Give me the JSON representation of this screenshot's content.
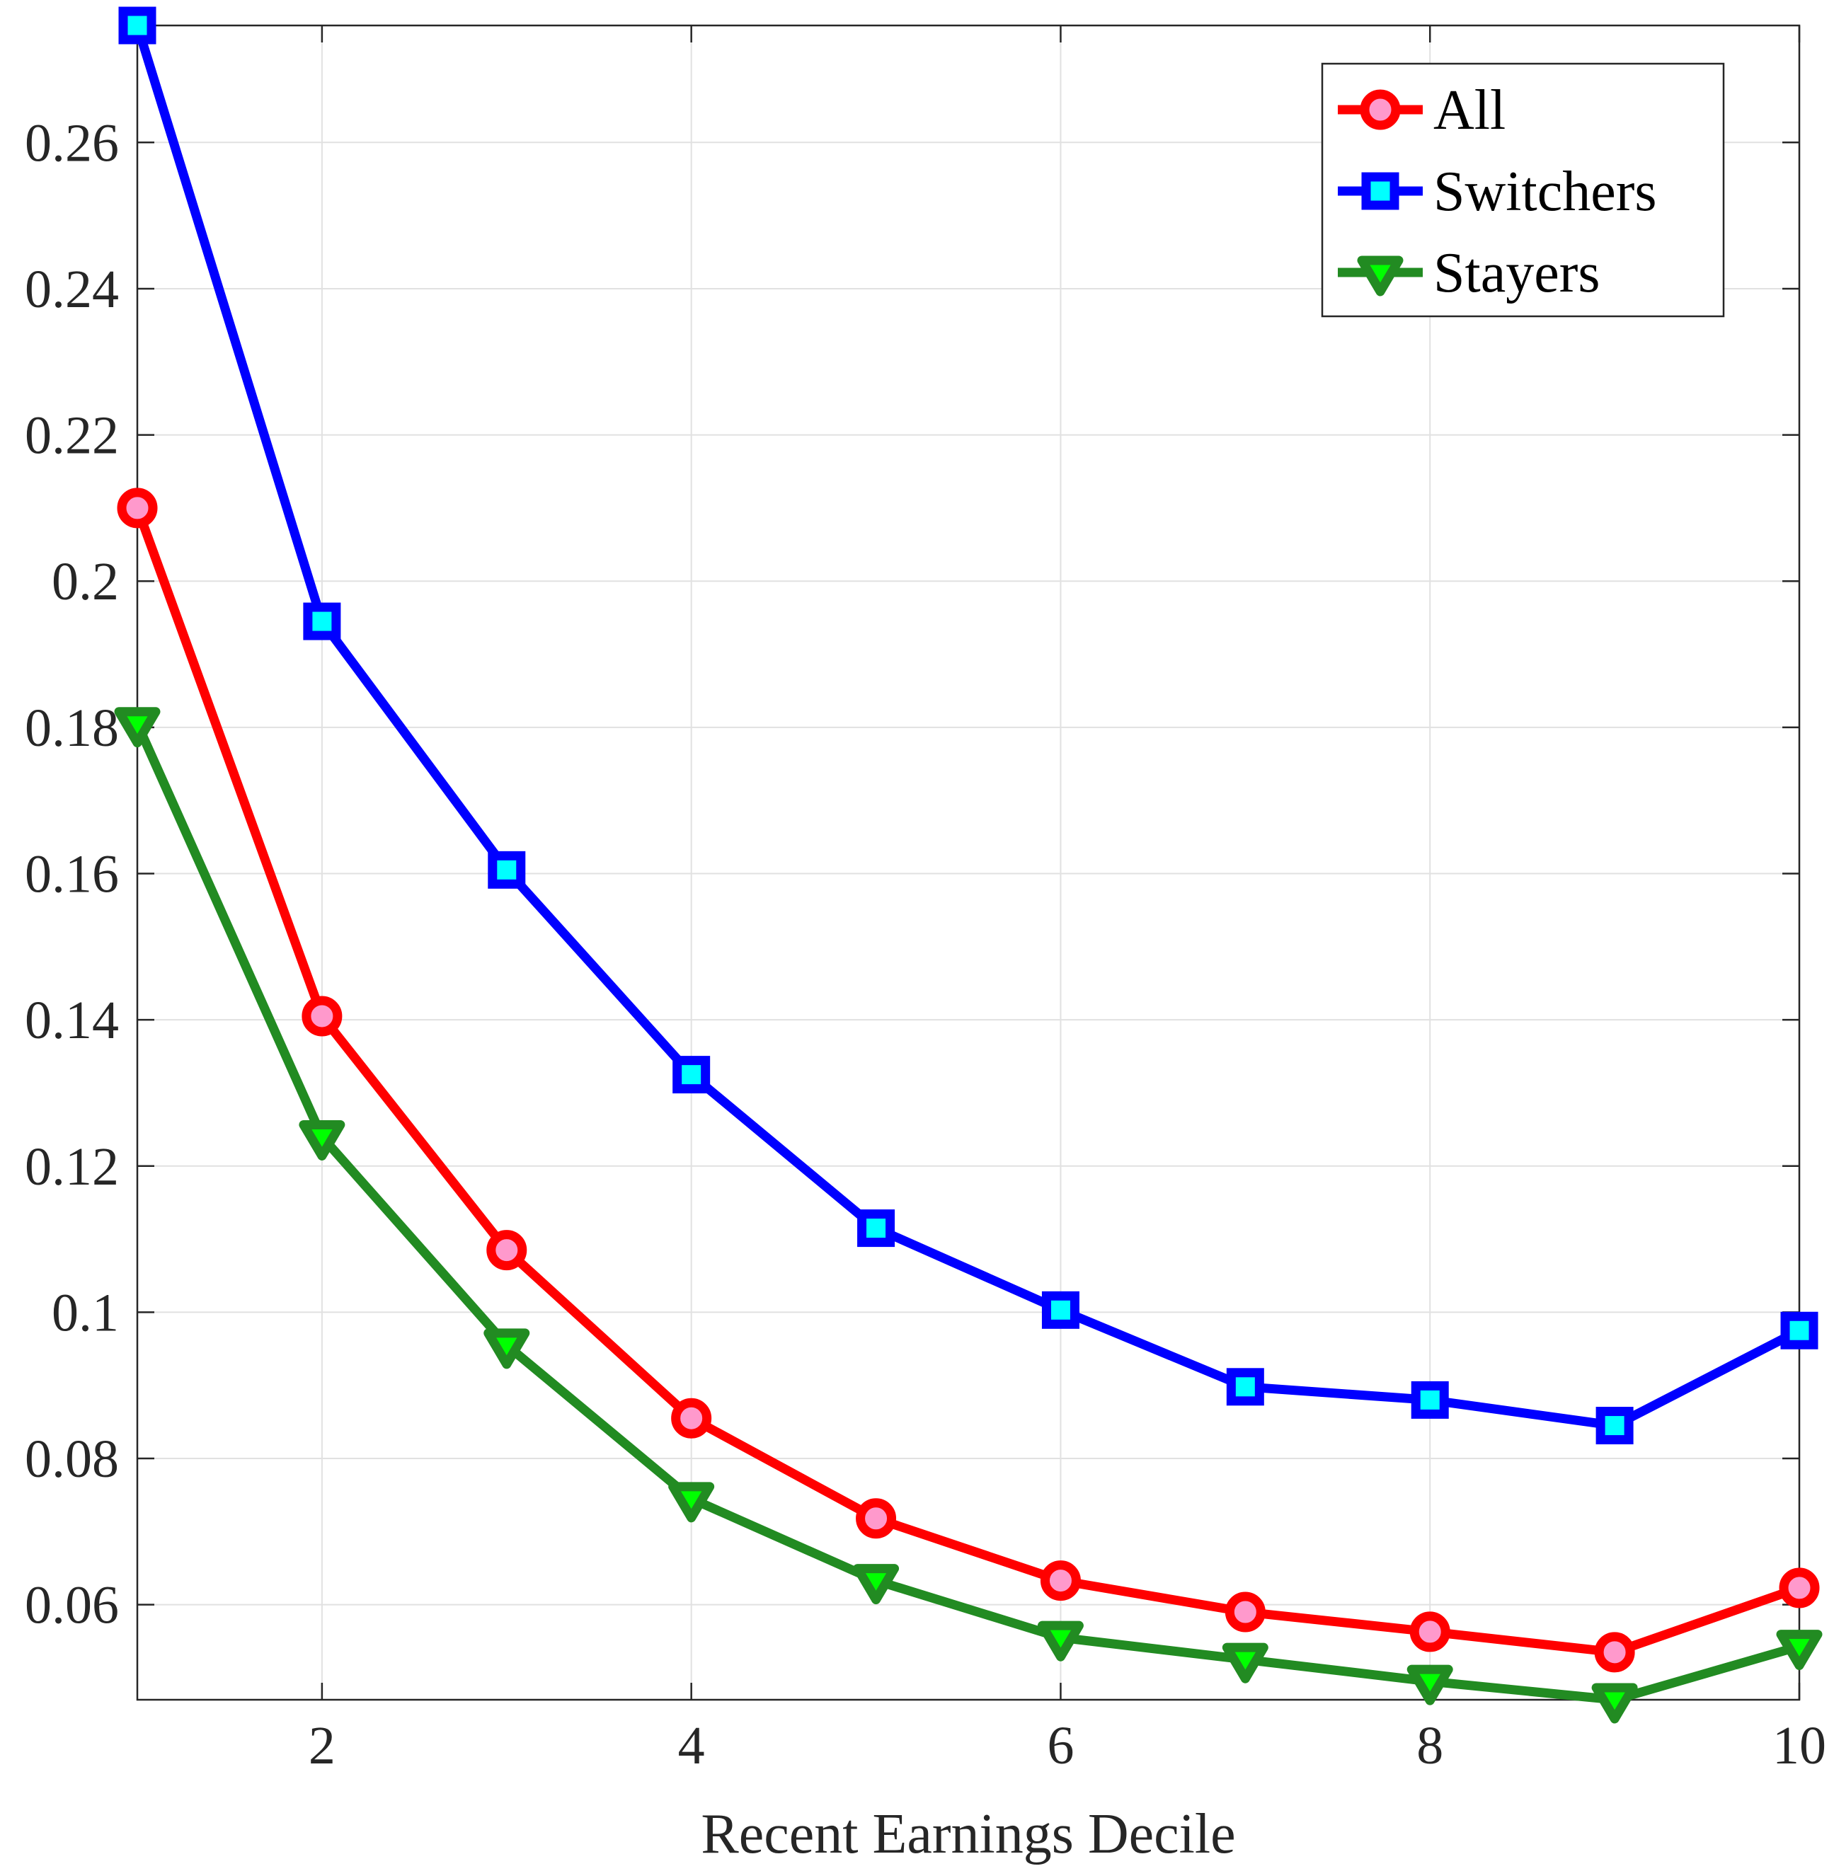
{
  "chart_data": {
    "type": "line",
    "title": "",
    "xlabel": "Recent Earnings Decile",
    "ylabel": "",
    "xlim": [
      1,
      10
    ],
    "ylim": [
      0.047,
      0.276
    ],
    "xticks": [
      2,
      4,
      6,
      8,
      10
    ],
    "xtick_labels": [
      "2",
      "4",
      "6",
      "8",
      "10"
    ],
    "yticks": [
      0.06,
      0.08,
      0.1,
      0.12,
      0.14,
      0.16,
      0.18,
      0.2,
      0.22,
      0.24,
      0.26
    ],
    "ytick_labels": [
      "0.06",
      "0.08",
      "0.1",
      "0.12",
      "0.14",
      "0.16",
      "0.18",
      "0.2",
      "0.22",
      "0.24",
      "0.26"
    ],
    "grid": true,
    "legend_position": "top-right",
    "x": [
      1,
      2,
      3,
      4,
      5,
      6,
      7,
      8,
      9,
      10
    ],
    "series": [
      {
        "name": "All",
        "color": "#ff0000",
        "marker": "circle",
        "marker_fill": "#ff99cc",
        "values": [
          0.21,
          0.1405,
          0.1085,
          0.0855,
          0.0718,
          0.0633,
          0.059,
          0.0563,
          0.0535,
          0.0623
        ]
      },
      {
        "name": "Switchers",
        "color": "#0000ff",
        "marker": "square",
        "marker_fill": "#00ffff",
        "values": [
          0.276,
          0.1945,
          0.1605,
          0.1325,
          0.1115,
          0.1003,
          0.0898,
          0.088,
          0.0845,
          0.0975
        ]
      },
      {
        "name": "Stayers",
        "color": "#228b22",
        "marker": "triangle-down",
        "marker_fill": "#00ff00",
        "values": [
          0.1805,
          0.124,
          0.0955,
          0.0745,
          0.0633,
          0.0555,
          0.0525,
          0.0495,
          0.047,
          0.0543
        ]
      }
    ]
  }
}
